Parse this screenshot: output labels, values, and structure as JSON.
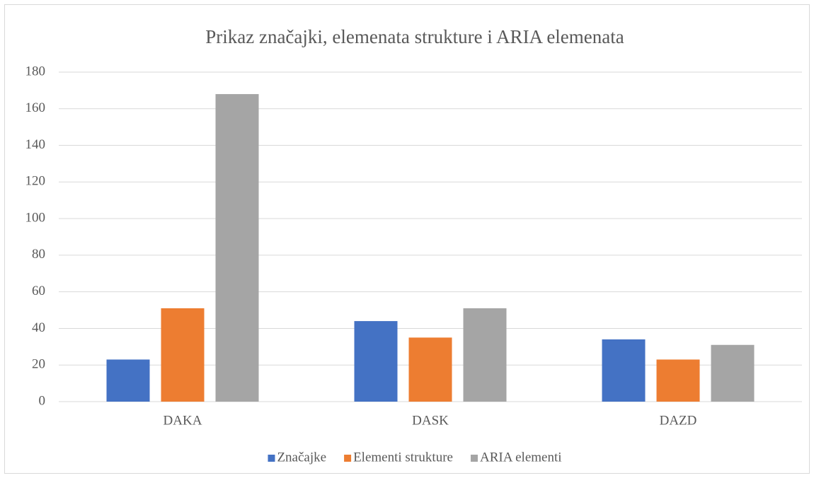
{
  "chart_data": {
    "type": "bar",
    "title": "Prikaz značajki, elemenata strukture i ARIA elemenata",
    "categories": [
      "DAKA",
      "DASK",
      "DAZD"
    ],
    "series": [
      {
        "name": "Značajke",
        "color": "#4472c4",
        "values": [
          23,
          44,
          34
        ]
      },
      {
        "name": "Elementi strukture",
        "color": "#ed7d31",
        "values": [
          51,
          35,
          23
        ]
      },
      {
        "name": "ARIA elementi",
        "color": "#a5a5a5",
        "values": [
          168,
          51,
          31
        ]
      }
    ],
    "ylim": [
      0,
      180
    ],
    "yticks": [
      0,
      20,
      40,
      60,
      80,
      100,
      120,
      140,
      160,
      180
    ],
    "grid": true,
    "legend": "bottom"
  }
}
